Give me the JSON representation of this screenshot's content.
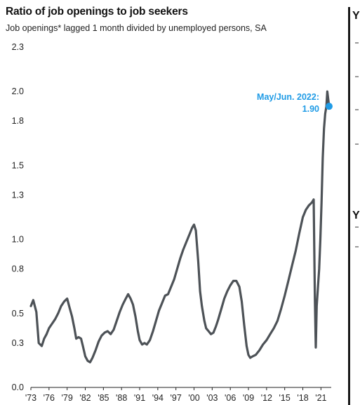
{
  "header": {
    "title": "Ratio of job openings to job seekers",
    "subtitle": "Job openings* lagged 1 month divided by unemployed persons, SA"
  },
  "colors": {
    "line": "#4d5257",
    "highlight": "#1f9be6",
    "text": "#111111"
  },
  "chart_data": {
    "type": "line",
    "title": "Ratio of job openings to job seekers",
    "subtitle": "Job openings* lagged 1 month divided by unemployed persons, SA",
    "xlabel": "",
    "ylabel": "",
    "xlim": [
      1973,
      2022.7
    ],
    "ylim": [
      0,
      2.3
    ],
    "yticks": [
      0.0,
      0.3,
      0.5,
      0.8,
      1.0,
      1.3,
      1.5,
      1.8,
      2.0,
      2.3
    ],
    "ytick_labels": [
      "0.0",
      "0.3",
      "0.5",
      "0.8",
      "1.0",
      "1.3",
      "1.5",
      "1.8",
      "2.0",
      "2.3"
    ],
    "xticks": [
      1973,
      1976,
      1979,
      1982,
      1985,
      1988,
      1991,
      1994,
      1997,
      2000,
      2003,
      2006,
      2009,
      2012,
      2015,
      2018,
      2021
    ],
    "xtick_labels": [
      "'73",
      "'76",
      "'79",
      "'82",
      "'85",
      "'88",
      "'91",
      "'94",
      "'97",
      "'00",
      "'03",
      "'06",
      "'09",
      "'12",
      "'15",
      "'18",
      "'21"
    ],
    "grid": false,
    "series": [
      {
        "x": [
          1973,
          1973.4,
          1973.9,
          1974.3,
          1974.8,
          1975.2,
          1975.6,
          1976.0,
          1976.5,
          1977.0,
          1977.5,
          1978.0,
          1978.5,
          1979.0,
          1979.4,
          1979.8,
          1980.2,
          1980.5,
          1980.9,
          1981.3,
          1981.6,
          1982.0,
          1982.4,
          1982.8,
          1983.2,
          1983.7,
          1984.2,
          1984.7,
          1985.2,
          1985.7,
          1986.2,
          1986.7,
          1987.2,
          1987.7,
          1988.2,
          1988.7,
          1989.1,
          1989.5,
          1989.9,
          1990.3,
          1990.7,
          1991.0,
          1991.4,
          1991.8,
          1992.2,
          1992.7,
          1993.2,
          1993.7,
          1994.2,
          1994.7,
          1995.2,
          1995.7,
          1996.2,
          1996.7,
          1997.2,
          1997.7,
          1998.2,
          1998.7,
          1999.2,
          1999.7,
          2000.0,
          2000.3,
          2000.7,
          2001.0,
          2001.3,
          2001.7,
          2002.0,
          2002.4,
          2002.8,
          2003.2,
          2003.6,
          2004.0,
          2004.5,
          2005.0,
          2005.5,
          2006.0,
          2006.5,
          2007.0,
          2007.5,
          2007.9,
          2008.3,
          2008.7,
          2009.0,
          2009.3,
          2009.7,
          2010.2,
          2010.8,
          2011.4,
          2012.0,
          2012.6,
          2013.2,
          2013.8,
          2014.4,
          2015.0,
          2015.6,
          2016.2,
          2016.8,
          2017.4,
          2018.0,
          2018.5,
          2019.0,
          2019.5,
          2019.8,
          2020.0,
          2020.15,
          2020.3,
          2020.5,
          2020.7,
          2020.9,
          2021.1,
          2021.3,
          2021.5,
          2021.7,
          2021.9,
          2022.05,
          2022.2,
          2022.35
        ],
        "values": [
          0.55,
          0.59,
          0.51,
          0.3,
          0.28,
          0.33,
          0.36,
          0.4,
          0.43,
          0.46,
          0.5,
          0.55,
          0.58,
          0.6,
          0.54,
          0.48,
          0.4,
          0.33,
          0.34,
          0.33,
          0.28,
          0.21,
          0.18,
          0.17,
          0.2,
          0.25,
          0.31,
          0.35,
          0.37,
          0.38,
          0.36,
          0.39,
          0.45,
          0.51,
          0.56,
          0.6,
          0.63,
          0.6,
          0.56,
          0.48,
          0.38,
          0.32,
          0.29,
          0.3,
          0.29,
          0.32,
          0.38,
          0.45,
          0.52,
          0.57,
          0.62,
          0.63,
          0.68,
          0.73,
          0.8,
          0.87,
          0.93,
          0.98,
          1.03,
          1.08,
          1.1,
          1.06,
          0.85,
          0.65,
          0.55,
          0.45,
          0.4,
          0.38,
          0.36,
          0.37,
          0.41,
          0.46,
          0.53,
          0.6,
          0.65,
          0.69,
          0.72,
          0.72,
          0.68,
          0.58,
          0.42,
          0.28,
          0.22,
          0.2,
          0.21,
          0.22,
          0.25,
          0.29,
          0.32,
          0.36,
          0.4,
          0.45,
          0.53,
          0.62,
          0.72,
          0.82,
          0.92,
          1.04,
          1.15,
          1.2,
          1.23,
          1.25,
          1.27,
          0.6,
          0.27,
          0.55,
          0.68,
          0.8,
          1.0,
          1.25,
          1.55,
          1.75,
          1.85,
          1.9,
          2.0,
          1.95,
          1.9
        ]
      }
    ],
    "annotation": {
      "text": "May/Jun. 2022:",
      "value_label": "1.90",
      "x": 2022.35,
      "y": 1.9
    }
  },
  "right_panel": {
    "glyphs": [
      "Y",
      "Y"
    ]
  }
}
